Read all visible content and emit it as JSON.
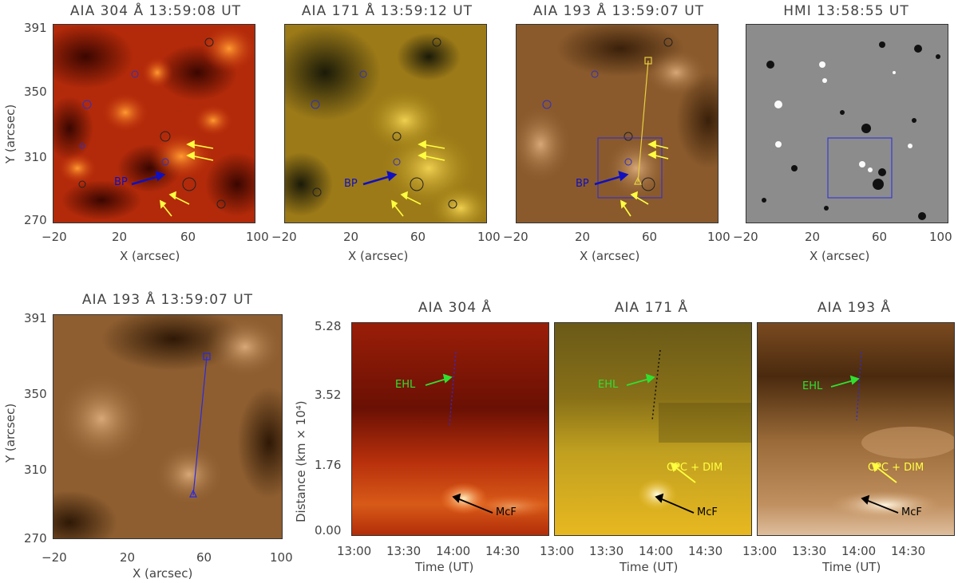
{
  "top_row": {
    "panels": [
      {
        "title": "AIA 304 Å 13:59:08 UT"
      },
      {
        "title": "AIA 171 Å 13:59:12 UT"
      },
      {
        "title": "AIA 193 Å 13:59:07 UT"
      },
      {
        "title": "HMI 13:58:55 UT"
      }
    ],
    "x_ticks": [
      "−20",
      "20",
      "60",
      "100",
      "−20",
      "20",
      "60",
      "100",
      "−20",
      "20",
      "60",
      "100",
      "−20",
      "20",
      "60",
      "100"
    ],
    "y_ticks": [
      "391",
      "350",
      "310",
      "270"
    ],
    "xlabel": "X (arcsec)",
    "ylabel": "Y (arcsec)",
    "bp_label": "BP"
  },
  "bottom_left": {
    "title": "AIA 193 Å 13:59:07 UT",
    "x_ticks": [
      "−20",
      "20",
      "60",
      "100"
    ],
    "y_ticks": [
      "391",
      "350",
      "310",
      "270"
    ],
    "xlabel": "X (arcsec)",
    "ylabel": "Y (arcsec)"
  },
  "time_distance": {
    "panels": [
      {
        "title": "AIA 304 Å"
      },
      {
        "title": "AIA 171 Å"
      },
      {
        "title": "AIA 193 Å"
      }
    ],
    "y_ticks": [
      "5.28",
      "3.52",
      "1.76",
      "0.00"
    ],
    "x_ticks": [
      "13:00",
      "13:30",
      "14:00",
      "14:30"
    ],
    "xlabel": "Time (UT)",
    "ylabel": "Distance (km × 10⁴)",
    "labels": {
      "ehl": "EHL",
      "mcf": "McF",
      "cpc": "CPC + DIM"
    }
  },
  "colors": {
    "aia304": "#b83a10",
    "aia171": "#b08a20",
    "aia193": "#8a5a2c",
    "hmi": "#8a8a8a",
    "contour_blue": "#3030c0",
    "arrow_yellow": "#ffff40",
    "arrow_green": "#30e030",
    "arrow_black": "#000000"
  }
}
